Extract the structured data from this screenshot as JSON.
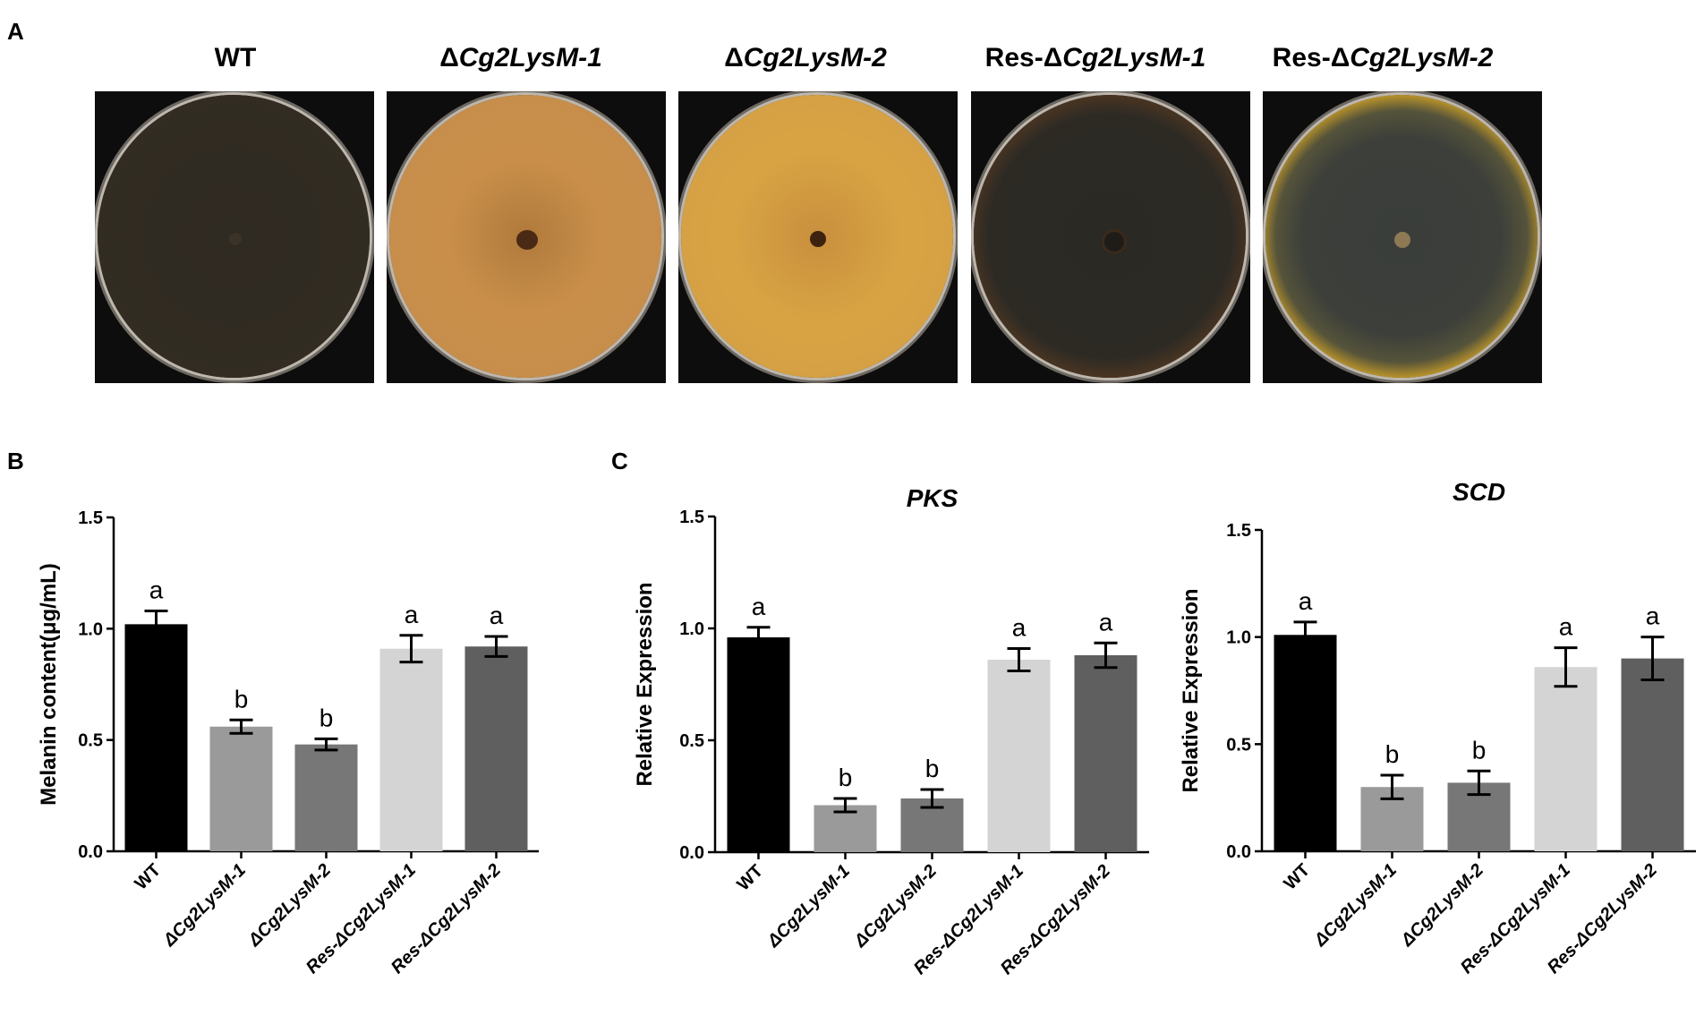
{
  "panels": {
    "a": {
      "letter": "A"
    },
    "b": {
      "letter": "B"
    },
    "c": {
      "letter": "C"
    }
  },
  "plates": [
    {
      "label_prefix": "",
      "label_italic": "",
      "label_plain": "WT"
    },
    {
      "label_prefix": "Δ",
      "label_italic": "Cg2LysM-1",
      "label_plain": ""
    },
    {
      "label_prefix": "Δ",
      "label_italic": "Cg2LysM-2",
      "label_plain": ""
    },
    {
      "label_prefix": "Res-Δ",
      "label_italic": "Cg2LysM-1",
      "label_plain": ""
    },
    {
      "label_prefix": "Res-Δ",
      "label_italic": "Cg2LysM-2",
      "label_plain": ""
    }
  ],
  "plate_colors": {
    "wt_colony": "#2f2a22",
    "mutant1_medium": "#c98f4a",
    "mutant2_medium": "#d8a443",
    "res1_colony": "#2a2924",
    "res2_medium": "#e0a21a",
    "res2_colony": "#3a3d3a"
  },
  "chart_data": [
    {
      "type": "bar",
      "title": "",
      "ylabel": "Melanin content(μg/mL)",
      "xlabel": "",
      "ylim": [
        0,
        1.5
      ],
      "yticks": [
        "0.0",
        "0.5",
        "1.0",
        "1.5"
      ],
      "categories": [
        "WT",
        "ΔCg2LysM-1",
        "ΔCg2LysM-2",
        "Res-ΔCg2LysM-1",
        "Res-ΔCg2LysM-2"
      ],
      "values": [
        1.02,
        0.56,
        0.48,
        0.91,
        0.92
      ],
      "errors": [
        0.06,
        0.03,
        0.025,
        0.06,
        0.045
      ],
      "significance": [
        "a",
        "b",
        "b",
        "a",
        "a"
      ],
      "colors": [
        "#000000",
        "#9a9a9a",
        "#777777",
        "#d4d4d4",
        "#5f5f5f"
      ]
    },
    {
      "type": "bar",
      "title": "PKS",
      "ylabel": "Relative Expression",
      "xlabel": "",
      "ylim": [
        0,
        1.5
      ],
      "yticks": [
        "0.0",
        "0.5",
        "1.0",
        "1.5"
      ],
      "categories": [
        "WT",
        "ΔCg2LysM-1",
        "ΔCg2LysM-2",
        "Res-ΔCg2LysM-1",
        "Res-ΔCg2LysM-2"
      ],
      "values": [
        0.96,
        0.21,
        0.24,
        0.86,
        0.88
      ],
      "errors": [
        0.045,
        0.03,
        0.04,
        0.05,
        0.055
      ],
      "significance": [
        "a",
        "b",
        "b",
        "a",
        "a"
      ],
      "colors": [
        "#000000",
        "#9a9a9a",
        "#777777",
        "#d4d4d4",
        "#5f5f5f"
      ]
    },
    {
      "type": "bar",
      "title": "SCD",
      "ylabel": "Relative Expression",
      "xlabel": "",
      "ylim": [
        0,
        1.5
      ],
      "yticks": [
        "0.0",
        "0.5",
        "1.0",
        "1.5"
      ],
      "categories": [
        "WT",
        "ΔCg2LysM-1",
        "ΔCg2LysM-2",
        "Res-ΔCg2LysM-1",
        "Res-ΔCg2LysM-2"
      ],
      "values": [
        1.01,
        0.3,
        0.32,
        0.86,
        0.9
      ],
      "errors": [
        0.06,
        0.055,
        0.055,
        0.09,
        0.1
      ],
      "significance": [
        "a",
        "b",
        "b",
        "a",
        "a"
      ],
      "colors": [
        "#000000",
        "#9a9a9a",
        "#777777",
        "#d4d4d4",
        "#5f5f5f"
      ]
    }
  ]
}
